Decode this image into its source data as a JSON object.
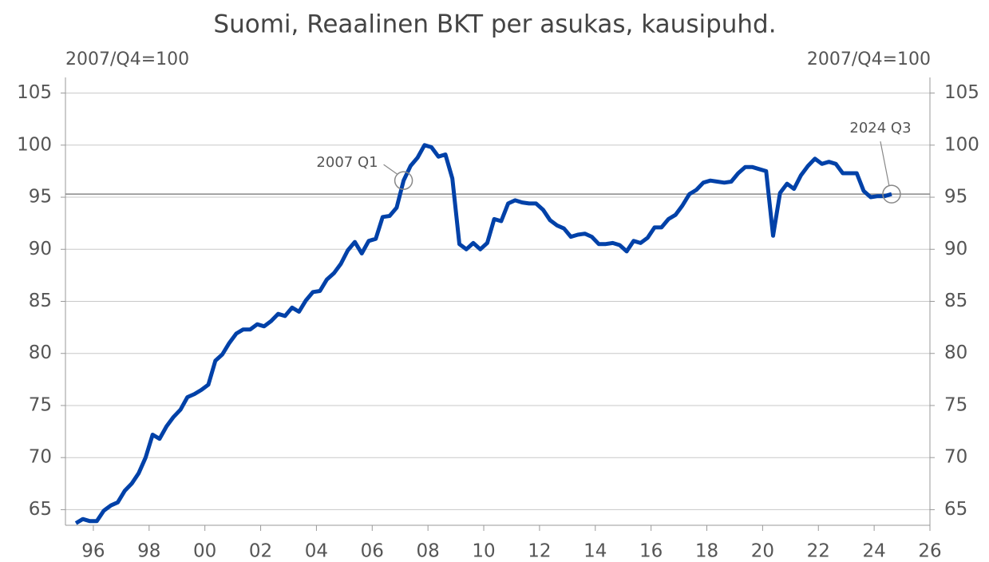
{
  "chart_data": {
    "type": "line",
    "title": "Suomi, Reaalinen BKT per asukas, kausipuhd.",
    "y_label": "2007/Q4=100",
    "y2_label": "2007/Q4=100",
    "x": [
      1995.375,
      1995.625,
      1995.875,
      1996.125,
      1996.375,
      1996.625,
      1996.875,
      1997.125,
      1997.375,
      1997.625,
      1997.875,
      1998.125,
      1998.375,
      1998.625,
      1998.875,
      1999.125,
      1999.375,
      1999.625,
      1999.875,
      2000.125,
      2000.375,
      2000.625,
      2000.875,
      2001.125,
      2001.375,
      2001.625,
      2001.875,
      2002.125,
      2002.375,
      2002.625,
      2002.875,
      2003.125,
      2003.375,
      2003.625,
      2003.875,
      2004.125,
      2004.375,
      2004.625,
      2004.875,
      2005.125,
      2005.375,
      2005.625,
      2005.875,
      2006.125,
      2006.375,
      2006.625,
      2006.875,
      2007.125,
      2007.375,
      2007.625,
      2007.875,
      2008.125,
      2008.375,
      2008.625,
      2008.875,
      2009.125,
      2009.375,
      2009.625,
      2009.875,
      2010.125,
      2010.375,
      2010.625,
      2010.875,
      2011.125,
      2011.375,
      2011.625,
      2011.875,
      2012.125,
      2012.375,
      2012.625,
      2012.875,
      2013.125,
      2013.375,
      2013.625,
      2013.875,
      2014.125,
      2014.375,
      2014.625,
      2014.875,
      2015.125,
      2015.375,
      2015.625,
      2015.875,
      2016.125,
      2016.375,
      2016.625,
      2016.875,
      2017.125,
      2017.375,
      2017.625,
      2017.875,
      2018.125,
      2018.375,
      2018.625,
      2018.875,
      2019.125,
      2019.375,
      2019.625,
      2019.875,
      2020.125,
      2020.375,
      2020.625,
      2020.875,
      2021.125,
      2021.375,
      2021.625,
      2021.875,
      2022.125,
      2022.375,
      2022.625,
      2022.875,
      2023.125,
      2023.375,
      2023.625,
      2023.875,
      2024.125,
      2024.375,
      2024.625
    ],
    "values": [
      63.7,
      64.1,
      63.9,
      63.9,
      64.9,
      65.4,
      65.7,
      66.8,
      67.5,
      68.5,
      70.0,
      72.2,
      71.8,
      73.0,
      73.9,
      74.6,
      75.8,
      76.1,
      76.5,
      77.0,
      79.3,
      79.9,
      81.0,
      81.9,
      82.3,
      82.3,
      82.8,
      82.6,
      83.1,
      83.8,
      83.6,
      84.4,
      84.0,
      85.1,
      85.9,
      86.0,
      87.1,
      87.7,
      88.6,
      89.9,
      90.7,
      89.6,
      90.8,
      91.0,
      93.1,
      93.2,
      94.0,
      96.6,
      98.0,
      98.8,
      100.0,
      99.8,
      98.9,
      99.1,
      96.8,
      90.5,
      90.0,
      90.6,
      90.0,
      90.6,
      92.9,
      92.7,
      94.4,
      94.7,
      94.5,
      94.4,
      94.4,
      93.8,
      92.8,
      92.3,
      92.0,
      91.2,
      91.4,
      91.5,
      91.2,
      90.5,
      90.5,
      90.6,
      90.4,
      89.8,
      90.8,
      90.6,
      91.1,
      92.1,
      92.1,
      92.9,
      93.3,
      94.2,
      95.3,
      95.7,
      96.4,
      96.6,
      96.5,
      96.4,
      96.5,
      97.3,
      97.9,
      97.9,
      97.7,
      97.5,
      91.3,
      95.4,
      96.3,
      95.8,
      97.1,
      98.0,
      98.7,
      98.2,
      98.4,
      98.2,
      97.3,
      97.3,
      97.3,
      95.6,
      95.0,
      95.1,
      95.1,
      95.3
    ],
    "color": "#0041a8",
    "reference_line": 95.3,
    "annotations": [
      {
        "text": "2007 Q1",
        "x": 2007.125,
        "y": 96.6
      },
      {
        "text": "2024 Q3",
        "x": 2024.625,
        "y": 95.3
      }
    ],
    "xlim": [
      1995,
      2026
    ],
    "xticks": [
      {
        "value": 1996,
        "label": "96"
      },
      {
        "value": 1998,
        "label": "98"
      },
      {
        "value": 2000,
        "label": "00"
      },
      {
        "value": 2002,
        "label": "02"
      },
      {
        "value": 2004,
        "label": "04"
      },
      {
        "value": 2006,
        "label": "06"
      },
      {
        "value": 2008,
        "label": "08"
      },
      {
        "value": 2010,
        "label": "10"
      },
      {
        "value": 2012,
        "label": "12"
      },
      {
        "value": 2014,
        "label": "14"
      },
      {
        "value": 2016,
        "label": "16"
      },
      {
        "value": 2018,
        "label": "18"
      },
      {
        "value": 2020,
        "label": "20"
      },
      {
        "value": 2022,
        "label": "22"
      },
      {
        "value": 2024,
        "label": "24"
      },
      {
        "value": 2026,
        "label": "26"
      }
    ],
    "ylim": [
      63.5,
      106.5
    ],
    "yticks": [
      65,
      70,
      75,
      80,
      85,
      90,
      95,
      100,
      105
    ],
    "y2lim": [
      63.5,
      106.5
    ],
    "y2ticks": [
      65,
      70,
      75,
      80,
      85,
      90,
      95,
      100,
      105
    ],
    "grid": true
  }
}
